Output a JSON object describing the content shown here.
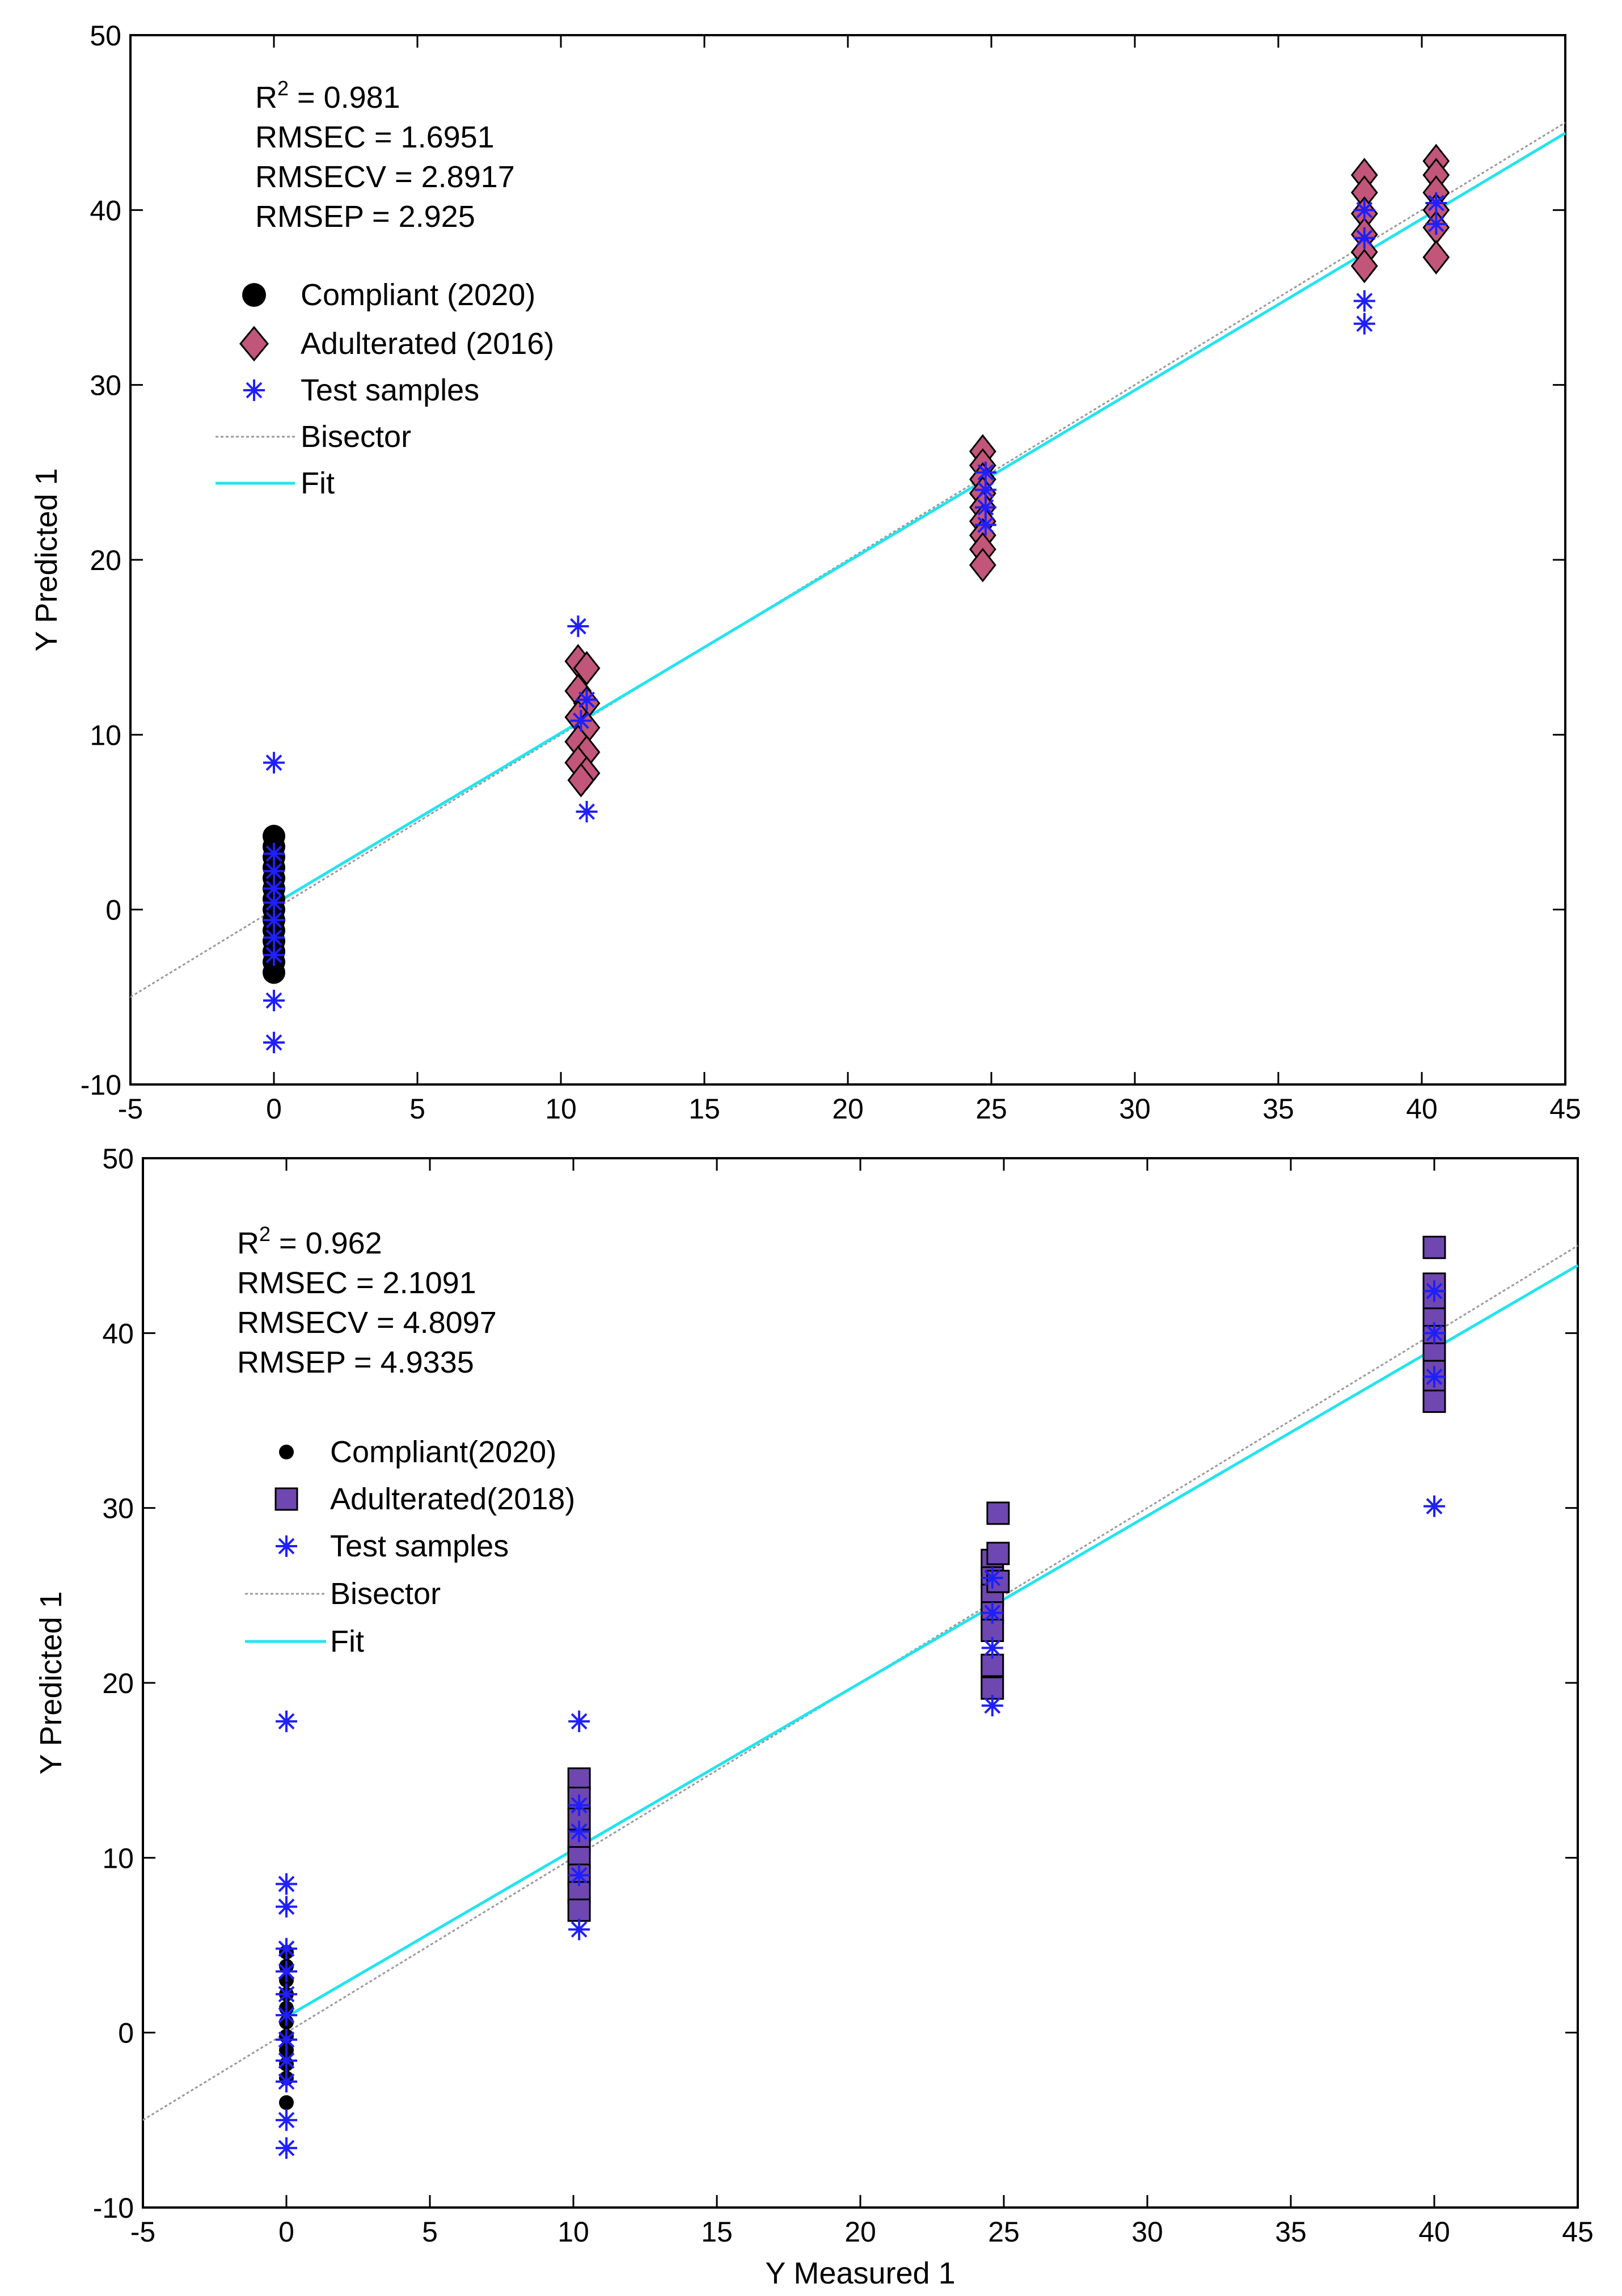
{
  "colors": {
    "compliant": "#000000",
    "adulterated_2016": "#c2557a",
    "adulterated_2018": "#6f47b0",
    "test": "#1f1fff",
    "fit": "#22e4ee",
    "bisector": "#9a9a9a"
  },
  "chart_data": [
    {
      "id": "top",
      "type": "scatter",
      "xlim": [
        -5,
        45
      ],
      "ylim": [
        -10,
        50
      ],
      "x_ticks": [
        "-5",
        "0",
        "5",
        "10",
        "15",
        "20",
        "25",
        "30",
        "35",
        "40",
        "45"
      ],
      "y_ticks": [
        "-10",
        "0",
        "10",
        "20",
        "30",
        "40",
        "50"
      ],
      "xlabel": "",
      "ylabel": "Y Predicted 1",
      "stats": {
        "r2_prefix": "R",
        "r2_sup": "2",
        "r2_value": " = 0.981",
        "rmsec": "RMSEC = 1.6951",
        "rmsecv": "RMSECV = 2.8917",
        "rmsep": "RMSEP = 2.925"
      },
      "legend": {
        "compliant": "Compliant (2020)",
        "adulterated": "Adulterated (2016)",
        "test": "Test samples",
        "bisector": "Bisector",
        "fit": "Fit"
      },
      "fit_line": {
        "slope": 0.98,
        "intercept": 0.3,
        "x_range": [
          0,
          45
        ]
      },
      "bisector_line": {
        "x_range": [
          -5,
          45
        ]
      },
      "series": {
        "compliant": [
          {
            "x": 0,
            "y": 4.2
          },
          {
            "x": 0,
            "y": 3.6
          },
          {
            "x": 0,
            "y": 3.0
          },
          {
            "x": 0,
            "y": 2.4
          },
          {
            "x": 0,
            "y": 1.8
          },
          {
            "x": 0,
            "y": 1.2
          },
          {
            "x": 0,
            "y": 0.6
          },
          {
            "x": 0,
            "y": 0.0
          },
          {
            "x": 0,
            "y": -0.6
          },
          {
            "x": 0,
            "y": -1.2
          },
          {
            "x": 0,
            "y": -1.8
          },
          {
            "x": 0,
            "y": -2.4
          },
          {
            "x": 0,
            "y": -3.0
          },
          {
            "x": 0,
            "y": -3.6
          }
        ],
        "adulterated": [
          {
            "x": 10.6,
            "y": 14.2
          },
          {
            "x": 10.9,
            "y": 13.8
          },
          {
            "x": 10.6,
            "y": 12.5
          },
          {
            "x": 10.9,
            "y": 11.8
          },
          {
            "x": 10.6,
            "y": 11.0
          },
          {
            "x": 10.9,
            "y": 10.4
          },
          {
            "x": 10.6,
            "y": 9.6
          },
          {
            "x": 10.9,
            "y": 9.0
          },
          {
            "x": 10.6,
            "y": 8.4
          },
          {
            "x": 10.9,
            "y": 7.8
          },
          {
            "x": 10.7,
            "y": 7.4
          },
          {
            "x": 24.7,
            "y": 26.2
          },
          {
            "x": 24.7,
            "y": 25.4
          },
          {
            "x": 24.7,
            "y": 24.6
          },
          {
            "x": 24.7,
            "y": 23.8
          },
          {
            "x": 24.7,
            "y": 23.0
          },
          {
            "x": 24.7,
            "y": 22.2
          },
          {
            "x": 24.7,
            "y": 21.4
          },
          {
            "x": 24.7,
            "y": 20.6
          },
          {
            "x": 24.7,
            "y": 19.7
          },
          {
            "x": 38.0,
            "y": 42.0
          },
          {
            "x": 38.0,
            "y": 41.0
          },
          {
            "x": 38.0,
            "y": 39.8
          },
          {
            "x": 38.0,
            "y": 38.6
          },
          {
            "x": 38.0,
            "y": 37.6
          },
          {
            "x": 38.0,
            "y": 36.8
          },
          {
            "x": 40.5,
            "y": 42.8
          },
          {
            "x": 40.5,
            "y": 42.0
          },
          {
            "x": 40.5,
            "y": 41.0
          },
          {
            "x": 40.5,
            "y": 40.0
          },
          {
            "x": 40.5,
            "y": 39.0
          },
          {
            "x": 40.5,
            "y": 37.3
          }
        ],
        "test": [
          {
            "x": 0,
            "y": 8.4
          },
          {
            "x": 0,
            "y": 3.2
          },
          {
            "x": 0,
            "y": 2.2
          },
          {
            "x": 0,
            "y": 1.2
          },
          {
            "x": 0,
            "y": 0.4
          },
          {
            "x": 0,
            "y": -0.6
          },
          {
            "x": 0,
            "y": -1.6
          },
          {
            "x": 0,
            "y": -2.6
          },
          {
            "x": 0,
            "y": -5.2
          },
          {
            "x": 0,
            "y": -7.6
          },
          {
            "x": 10.6,
            "y": 16.2
          },
          {
            "x": 10.9,
            "y": 12.0
          },
          {
            "x": 10.7,
            "y": 10.8
          },
          {
            "x": 10.9,
            "y": 5.6
          },
          {
            "x": 24.8,
            "y": 25.0
          },
          {
            "x": 24.8,
            "y": 24.0
          },
          {
            "x": 24.8,
            "y": 23.0
          },
          {
            "x": 24.8,
            "y": 22.0
          },
          {
            "x": 38.0,
            "y": 40.0
          },
          {
            "x": 38.0,
            "y": 38.4
          },
          {
            "x": 38.0,
            "y": 34.8
          },
          {
            "x": 38.0,
            "y": 33.5
          },
          {
            "x": 40.5,
            "y": 40.4
          },
          {
            "x": 40.5,
            "y": 39.2
          }
        ]
      }
    },
    {
      "id": "bottom",
      "type": "scatter",
      "xlim": [
        -5,
        45
      ],
      "ylim": [
        -10,
        50
      ],
      "x_ticks": [
        "-5",
        "0",
        "5",
        "10",
        "15",
        "20",
        "25",
        "30",
        "35",
        "40",
        "45"
      ],
      "y_ticks": [
        "-10",
        "0",
        "10",
        "20",
        "30",
        "40",
        "50"
      ],
      "xlabel": "Y Measured 1",
      "ylabel": "Y Predicted 1",
      "stats": {
        "r2_prefix": "R",
        "r2_sup": "2",
        "r2_value": " = 0.962",
        "rmsec": "RMSEC = 2.1091",
        "rmsecv": "RMSECV = 4.8097",
        "rmsep": "RMSEP = 4.9335"
      },
      "legend": {
        "compliant": "Compliant(2020)",
        "adulterated": "Adulterated(2018)",
        "test": "Test samples",
        "bisector": "Bisector",
        "fit": "Fit"
      },
      "fit_line": {
        "slope": 0.955,
        "intercept": 0.9,
        "x_range": [
          0,
          45
        ]
      },
      "bisector_line": {
        "x_range": [
          -5,
          45
        ]
      },
      "series": {
        "compliant": [
          {
            "x": 0,
            "y": 4.6
          },
          {
            "x": 0,
            "y": 3.8
          },
          {
            "x": 0,
            "y": 3.0
          },
          {
            "x": 0,
            "y": 2.2
          },
          {
            "x": 0,
            "y": 1.4
          },
          {
            "x": 0,
            "y": 0.6
          },
          {
            "x": 0,
            "y": -0.2
          },
          {
            "x": 0,
            "y": -1.0
          },
          {
            "x": 0,
            "y": -1.8
          },
          {
            "x": 0,
            "y": -2.6
          },
          {
            "x": 0,
            "y": -4.0
          }
        ],
        "adulterated": [
          {
            "x": 10.2,
            "y": 14.5
          },
          {
            "x": 10.2,
            "y": 13.4
          },
          {
            "x": 10.2,
            "y": 12.2
          },
          {
            "x": 10.2,
            "y": 11.0
          },
          {
            "x": 10.2,
            "y": 10.0
          },
          {
            "x": 10.2,
            "y": 9.0
          },
          {
            "x": 10.2,
            "y": 8.0
          },
          {
            "x": 10.2,
            "y": 7.0
          },
          {
            "x": 24.6,
            "y": 27.0
          },
          {
            "x": 24.6,
            "y": 26.0
          },
          {
            "x": 24.6,
            "y": 25.0
          },
          {
            "x": 24.6,
            "y": 24.0
          },
          {
            "x": 24.6,
            "y": 23.0
          },
          {
            "x": 24.6,
            "y": 21.0
          },
          {
            "x": 24.6,
            "y": 19.7
          },
          {
            "x": 24.8,
            "y": 29.7
          },
          {
            "x": 24.8,
            "y": 27.4
          },
          {
            "x": 24.8,
            "y": 25.8
          },
          {
            "x": 40.0,
            "y": 44.9
          },
          {
            "x": 40.0,
            "y": 42.8
          },
          {
            "x": 40.0,
            "y": 41.8
          },
          {
            "x": 40.0,
            "y": 40.8
          },
          {
            "x": 40.0,
            "y": 39.8
          },
          {
            "x": 40.0,
            "y": 38.8
          },
          {
            "x": 40.0,
            "y": 37.8
          },
          {
            "x": 40.0,
            "y": 36.9
          },
          {
            "x": 40.0,
            "y": 36.1
          }
        ],
        "test": [
          {
            "x": 0,
            "y": 17.8
          },
          {
            "x": 0,
            "y": 8.5
          },
          {
            "x": 0,
            "y": 7.2
          },
          {
            "x": 0,
            "y": 4.8
          },
          {
            "x": 0,
            "y": 3.5
          },
          {
            "x": 0,
            "y": 2.2
          },
          {
            "x": 0,
            "y": 1.0
          },
          {
            "x": 0,
            "y": -0.4
          },
          {
            "x": 0,
            "y": -1.6
          },
          {
            "x": 0,
            "y": -2.8
          },
          {
            "x": 0,
            "y": -5.0
          },
          {
            "x": 0,
            "y": -6.6
          },
          {
            "x": 10.2,
            "y": 17.8
          },
          {
            "x": 10.2,
            "y": 13.0
          },
          {
            "x": 10.2,
            "y": 11.5
          },
          {
            "x": 10.2,
            "y": 9.0
          },
          {
            "x": 10.2,
            "y": 5.9
          },
          {
            "x": 24.6,
            "y": 26.0
          },
          {
            "x": 24.6,
            "y": 24.0
          },
          {
            "x": 24.6,
            "y": 22.0
          },
          {
            "x": 24.6,
            "y": 18.7
          },
          {
            "x": 40.0,
            "y": 42.4
          },
          {
            "x": 40.0,
            "y": 40.0
          },
          {
            "x": 40.0,
            "y": 37.5
          },
          {
            "x": 40.0,
            "y": 30.1
          }
        ]
      }
    }
  ]
}
